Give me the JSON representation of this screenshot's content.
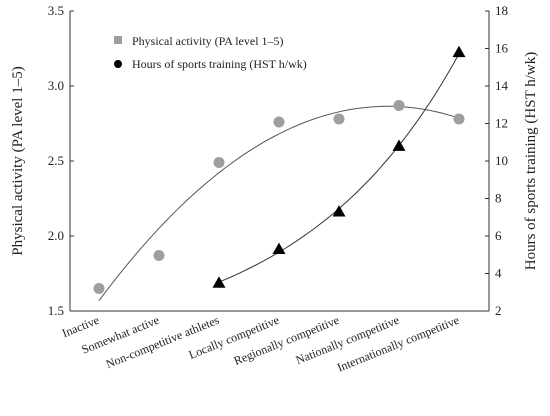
{
  "chart_data": {
    "type": "scatter",
    "categories": [
      "Inactive",
      "Somewhat active",
      "Non-competitive athletes",
      "Locally competitive",
      "Regionally competitive",
      "Nationally competitive",
      "Internationally competitive"
    ],
    "ylabel": "Physical activity (PA level 1–5)",
    "y2label": "Hours of sports training (HST h/wk)",
    "ylim": [
      1.5,
      3.5
    ],
    "y2lim": [
      2,
      18
    ],
    "yticks": [
      "1.5",
      "2.0",
      "2.5",
      "3.0",
      "3.5"
    ],
    "y2ticks": [
      "2",
      "4",
      "6",
      "8",
      "10",
      "12",
      "14",
      "16",
      "18"
    ],
    "legend_position": "top-left",
    "grid": false,
    "series": [
      {
        "name": "Physical activity (PA level 1–5)",
        "axis": "left",
        "marker": "circle",
        "color": "#9e9e9e",
        "legend_marker": "square",
        "values": [
          1.65,
          1.87,
          2.49,
          2.76,
          2.78,
          2.87,
          2.78
        ],
        "trend": "quadratic"
      },
      {
        "name": "Hours of sports training (HST h/wk)",
        "axis": "right",
        "marker": "triangle",
        "color": "#000000",
        "legend_marker": "circle",
        "values": [
          null,
          null,
          3.5,
          5.3,
          7.3,
          10.8,
          15.8
        ],
        "trend": "exponential"
      }
    ]
  }
}
